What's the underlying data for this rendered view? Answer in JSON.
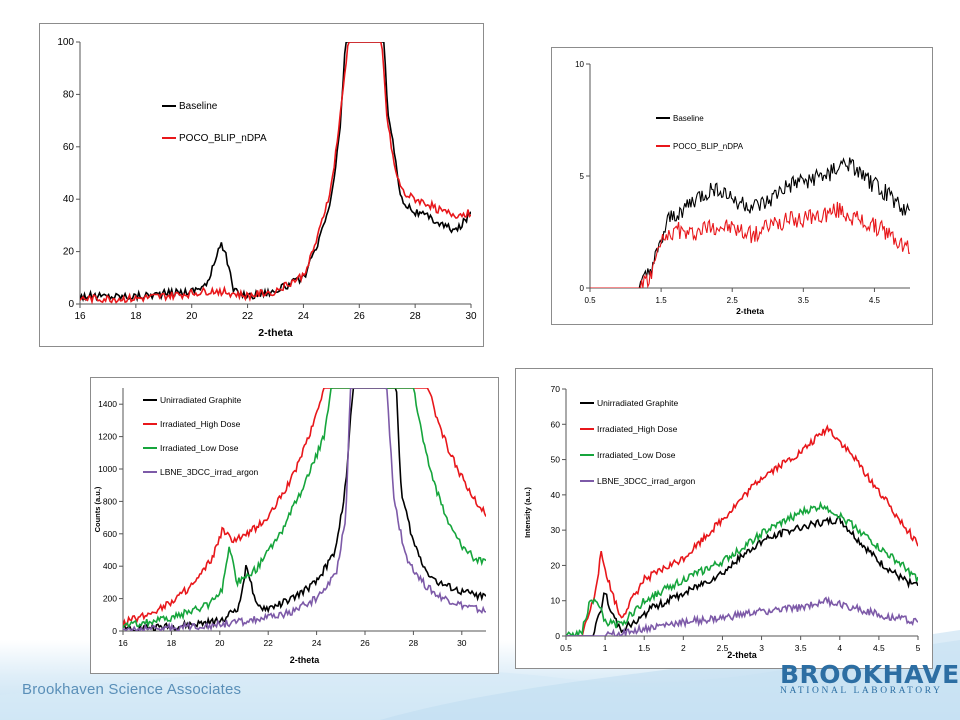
{
  "footer": {
    "org": "Brookhaven Science Associates",
    "logo_main": "BROOKHAVEN",
    "logo_sub": "NATIONAL LABORATORY"
  },
  "colors": {
    "black": "#000000",
    "red": "#e8171b",
    "green": "#16a53c",
    "purple": "#7d5aa8"
  },
  "chart_data": [
    {
      "type": "line",
      "xlabel": "2-theta",
      "ylabel": "",
      "xlim": [
        16,
        30
      ],
      "ylim": [
        0,
        100
      ],
      "xticks": [
        16,
        18,
        20,
        22,
        24,
        26,
        28,
        30
      ],
      "yticks": [
        0,
        20,
        40,
        60,
        80,
        100
      ],
      "legend_position": "upper-left",
      "series": [
        {
          "name": "Baseline",
          "color": "#000000",
          "anchors": [
            [
              16,
              3
            ],
            [
              17,
              3
            ],
            [
              18,
              3
            ],
            [
              19,
              4
            ],
            [
              20,
              5
            ],
            [
              20.6,
              8
            ],
            [
              21,
              23
            ],
            [
              21.2,
              20
            ],
            [
              21.5,
              5
            ],
            [
              22,
              3
            ],
            [
              23,
              5
            ],
            [
              24,
              10
            ],
            [
              24.5,
              22
            ],
            [
              25,
              40
            ],
            [
              25.3,
              65
            ],
            [
              25.5,
              100
            ],
            [
              26.9,
              100
            ],
            [
              27,
              75
            ],
            [
              27.3,
              55
            ],
            [
              27.5,
              40
            ],
            [
              28,
              35
            ],
            [
              28.5,
              33
            ],
            [
              29,
              30
            ],
            [
              29.5,
              28
            ],
            [
              30,
              35
            ]
          ]
        },
        {
          "name": "POCO_BLIP_nDPA",
          "color": "#e8171b",
          "anchors": [
            [
              16,
              2
            ],
            [
              17,
              2
            ],
            [
              18,
              2
            ],
            [
              19,
              3
            ],
            [
              20,
              4
            ],
            [
              20.6,
              5
            ],
            [
              21,
              5
            ],
            [
              21.5,
              4
            ],
            [
              22,
              3
            ],
            [
              23,
              5
            ],
            [
              24,
              11
            ],
            [
              24.5,
              25
            ],
            [
              25,
              45
            ],
            [
              25.3,
              70
            ],
            [
              25.6,
              100
            ],
            [
              26.8,
              100
            ],
            [
              27,
              70
            ],
            [
              27.3,
              50
            ],
            [
              27.6,
              42
            ],
            [
              28,
              40
            ],
            [
              28.5,
              38
            ],
            [
              29,
              35
            ],
            [
              29.5,
              34
            ],
            [
              30,
              35
            ]
          ]
        }
      ]
    },
    {
      "type": "line",
      "xlabel": "2-theta",
      "ylabel": "",
      "xlim": [
        0.5,
        5
      ],
      "ylim": [
        0,
        10
      ],
      "xticks": [
        0.5,
        1.5,
        2.5,
        3.5,
        4.5
      ],
      "yticks": [
        0,
        5,
        10
      ],
      "legend_position": "upper-left",
      "series": [
        {
          "name": "Baseline",
          "color": "#000000",
          "anchors": [
            [
              0.5,
              0
            ],
            [
              1.2,
              0
            ],
            [
              1.3,
              0.5
            ],
            [
              1.45,
              1.5
            ],
            [
              1.6,
              3
            ],
            [
              1.8,
              3.5
            ],
            [
              2,
              4
            ],
            [
              2.3,
              4.5
            ],
            [
              2.5,
              4
            ],
            [
              2.8,
              3.6
            ],
            [
              3,
              3.8
            ],
            [
              3.2,
              4.4
            ],
            [
              3.5,
              4.8
            ],
            [
              3.8,
              5
            ],
            [
              4.1,
              5.6
            ],
            [
              4.4,
              4.8
            ],
            [
              4.7,
              4.2
            ],
            [
              4.95,
              3.4
            ]
          ]
        },
        {
          "name": "POCO_BLIP_nDPA",
          "color": "#e8171b",
          "anchors": [
            [
              0.5,
              0
            ],
            [
              1.2,
              0
            ],
            [
              1.35,
              0.5
            ],
            [
              1.5,
              2
            ],
            [
              1.7,
              2.6
            ],
            [
              1.9,
              2.4
            ],
            [
              2.2,
              2.8
            ],
            [
              2.5,
              2.7
            ],
            [
              2.8,
              2.3
            ],
            [
              3,
              2.8
            ],
            [
              3.3,
              3
            ],
            [
              3.6,
              3.1
            ],
            [
              4,
              3.5
            ],
            [
              4.3,
              3
            ],
            [
              4.6,
              2.6
            ],
            [
              4.95,
              1.8
            ]
          ]
        }
      ]
    },
    {
      "type": "line",
      "xlabel": "2-theta",
      "ylabel": "Counts (a.u.)",
      "xlim": [
        16,
        31
      ],
      "ylim": [
        0,
        1500
      ],
      "xticks": [
        16,
        18,
        20,
        22,
        24,
        26,
        28,
        30
      ],
      "yticks": [
        0,
        200,
        400,
        600,
        800,
        1000,
        1200,
        1400
      ],
      "legend_position": "upper-left",
      "series": [
        {
          "name": "Unirradiated Graphite",
          "color": "#000000",
          "anchors": [
            [
              16,
              20
            ],
            [
              18,
              25
            ],
            [
              20,
              60
            ],
            [
              20.8,
              150
            ],
            [
              21.1,
              420
            ],
            [
              21.5,
              150
            ],
            [
              22,
              140
            ],
            [
              23,
              200
            ],
            [
              24,
              300
            ],
            [
              24.8,
              500
            ],
            [
              25.2,
              900
            ],
            [
              25.5,
              1500
            ],
            [
              27.3,
              1500
            ],
            [
              27.5,
              850
            ],
            [
              28,
              550
            ],
            [
              28.5,
              380
            ],
            [
              29,
              300
            ],
            [
              30,
              240
            ],
            [
              31,
              210
            ]
          ]
        },
        {
          "name": "Irradiated_High Dose",
          "color": "#e8171b",
          "anchors": [
            [
              16,
              50
            ],
            [
              17,
              100
            ],
            [
              18,
              180
            ],
            [
              19,
              300
            ],
            [
              19.7,
              450
            ],
            [
              20.1,
              620
            ],
            [
              20.5,
              560
            ],
            [
              21,
              580
            ],
            [
              22,
              700
            ],
            [
              23,
              950
            ],
            [
              23.8,
              1250
            ],
            [
              24.3,
              1500
            ],
            [
              28.6,
              1500
            ],
            [
              29,
              1300
            ],
            [
              29.5,
              1100
            ],
            [
              30,
              950
            ],
            [
              30.5,
              820
            ],
            [
              31,
              720
            ]
          ]
        },
        {
          "name": "Irradiated_Low Dose",
          "color": "#16a53c",
          "anchors": [
            [
              16,
              30
            ],
            [
              18,
              80
            ],
            [
              19.5,
              160
            ],
            [
              20.1,
              260
            ],
            [
              20.4,
              510
            ],
            [
              20.7,
              300
            ],
            [
              21.5,
              380
            ],
            [
              22.5,
              600
            ],
            [
              23.5,
              900
            ],
            [
              24.3,
              1200
            ],
            [
              24.6,
              1500
            ],
            [
              28,
              1500
            ],
            [
              28.5,
              1100
            ],
            [
              29,
              850
            ],
            [
              29.5,
              650
            ],
            [
              30,
              530
            ],
            [
              30.5,
              450
            ],
            [
              31,
              420
            ]
          ]
        },
        {
          "name": "LBNE_3DCC_irrad_argon",
          "color": "#7d5aa8",
          "anchors": [
            [
              16,
              10
            ],
            [
              18,
              20
            ],
            [
              20,
              40
            ],
            [
              21,
              60
            ],
            [
              22,
              80
            ],
            [
              23,
              120
            ],
            [
              24,
              200
            ],
            [
              24.8,
              350
            ],
            [
              25.2,
              700
            ],
            [
              25.4,
              1500
            ],
            [
              26.9,
              1500
            ],
            [
              27.2,
              800
            ],
            [
              27.7,
              450
            ],
            [
              28.5,
              280
            ],
            [
              29,
              220
            ],
            [
              30,
              160
            ],
            [
              31,
              120
            ]
          ]
        }
      ]
    },
    {
      "type": "line",
      "xlabel": "2-theta",
      "ylabel": "Intensity (a.u.)",
      "xlim": [
        0.5,
        5
      ],
      "ylim": [
        0,
        70
      ],
      "xticks": [
        0.5,
        1,
        1.5,
        2,
        2.5,
        3,
        3.5,
        4,
        4.5,
        5
      ],
      "yticks": [
        0,
        10,
        20,
        30,
        40,
        50,
        60,
        70
      ],
      "legend_position": "upper-left",
      "series": [
        {
          "name": "Unirradiated Graphite",
          "color": "#000000",
          "anchors": [
            [
              0.5,
              0
            ],
            [
              0.85,
              0
            ],
            [
              0.95,
              8
            ],
            [
              1,
              13
            ],
            [
              1.05,
              8
            ],
            [
              1.2,
              2
            ],
            [
              1.4,
              4
            ],
            [
              1.6,
              8
            ],
            [
              2,
              12
            ],
            [
              2.5,
              18
            ],
            [
              3,
              27
            ],
            [
              3.5,
              31
            ],
            [
              4,
              33
            ],
            [
              4.2,
              28
            ],
            [
              4.5,
              21
            ],
            [
              4.8,
              16
            ],
            [
              5,
              14
            ]
          ]
        },
        {
          "name": "Irradiated_High Dose",
          "color": "#e8171b",
          "anchors": [
            [
              0.5,
              0
            ],
            [
              0.7,
              0
            ],
            [
              0.85,
              10
            ],
            [
              0.95,
              23
            ],
            [
              1.05,
              15
            ],
            [
              1.2,
              5
            ],
            [
              1.5,
              16
            ],
            [
              2,
              22
            ],
            [
              2.5,
              33
            ],
            [
              3,
              45
            ],
            [
              3.5,
              52
            ],
            [
              3.85,
              59
            ],
            [
              4.2,
              50
            ],
            [
              4.5,
              41
            ],
            [
              4.8,
              32
            ],
            [
              5,
              26
            ]
          ]
        },
        {
          "name": "Irradiated_Low Dose",
          "color": "#16a53c",
          "anchors": [
            [
              0.5,
              0
            ],
            [
              0.7,
              1
            ],
            [
              0.8,
              9
            ],
            [
              0.9,
              10
            ],
            [
              1,
              4
            ],
            [
              1.2,
              3
            ],
            [
              1.5,
              10
            ],
            [
              2,
              16
            ],
            [
              2.5,
              21
            ],
            [
              3,
              29
            ],
            [
              3.5,
              35
            ],
            [
              3.8,
              37
            ],
            [
              4.2,
              31
            ],
            [
              4.5,
              25
            ],
            [
              4.8,
              20
            ],
            [
              5,
              16
            ]
          ]
        },
        {
          "name": "LBNE_3DCC_irrad_argon",
          "color": "#7d5aa8",
          "anchors": [
            [
              0.5,
              0
            ],
            [
              1,
              0
            ],
            [
              1.5,
              2
            ],
            [
              2,
              4
            ],
            [
              2.5,
              5
            ],
            [
              3,
              7
            ],
            [
              3.5,
              8
            ],
            [
              3.8,
              10
            ],
            [
              4.2,
              8
            ],
            [
              4.5,
              6
            ],
            [
              4.8,
              5
            ],
            [
              5,
              4
            ]
          ]
        }
      ]
    }
  ]
}
